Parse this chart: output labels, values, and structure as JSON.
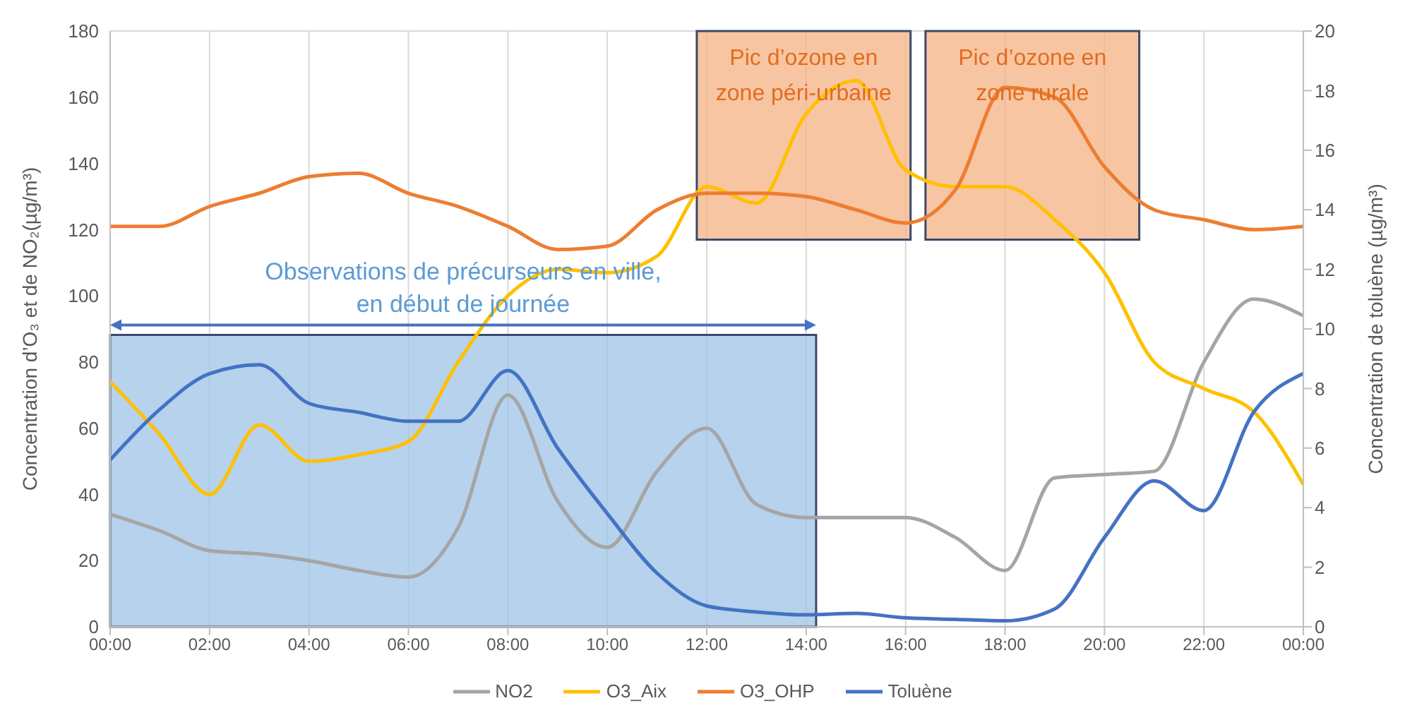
{
  "chart_data": {
    "type": "line",
    "ylabel": "Concentration d’O₃ et de NO₂(µg/m³)",
    "y2label": "Concentration de toluène (µg/m³)",
    "x": [
      0,
      1,
      2,
      3,
      4,
      5,
      6,
      7,
      8,
      9,
      10,
      11,
      12,
      13,
      14,
      15,
      16,
      17,
      18,
      19,
      20,
      21,
      22,
      23,
      24
    ],
    "series": [
      {
        "name": "NO2",
        "color": "#a5a5a5",
        "values": [
          34,
          29,
          23,
          22,
          20,
          17,
          15,
          30,
          70,
          38,
          24,
          47,
          60,
          37,
          33,
          33,
          33,
          27,
          17,
          45,
          46,
          47,
          80,
          99,
          94
        ]
      },
      {
        "name": "O3_Aix",
        "color": "#ffc000",
        "values": [
          74,
          58,
          40,
          61,
          50,
          52,
          56,
          80,
          100,
          108,
          107,
          112,
          133,
          128,
          155,
          165,
          138,
          133,
          133,
          123,
          107,
          80,
          72,
          65,
          43
        ]
      },
      {
        "name": "O3_OHP",
        "color": "#ed7d31",
        "values": [
          121,
          121,
          127,
          131,
          136,
          137,
          131,
          127,
          121,
          114,
          115,
          126,
          131,
          131,
          130,
          126,
          122,
          132,
          163,
          160,
          139,
          126,
          123,
          120,
          121
        ]
      },
      {
        "name": "Toluène",
        "color": "#4472c4",
        "axis": "y2",
        "values": [
          5.6,
          7.3,
          8.5,
          8.8,
          7.5,
          7.2,
          6.9,
          6.9,
          8.6,
          6.0,
          3.8,
          1.8,
          0.7,
          0.5,
          0.4,
          0.45,
          0.3,
          0.25,
          0.2,
          0.6,
          3.0,
          4.9,
          3.9,
          7.2,
          8.5
        ]
      }
    ],
    "xlim": [
      0,
      24
    ],
    "xticks": [
      {
        "value": 0,
        "label": "00:00"
      },
      {
        "value": 2,
        "label": "02:00"
      },
      {
        "value": 4,
        "label": "04:00"
      },
      {
        "value": 6,
        "label": "06:00"
      },
      {
        "value": 8,
        "label": "08:00"
      },
      {
        "value": 10,
        "label": "10:00"
      },
      {
        "value": 12,
        "label": "12:00"
      },
      {
        "value": 14,
        "label": "14:00"
      },
      {
        "value": 16,
        "label": "16:00"
      },
      {
        "value": 18,
        "label": "18:00"
      },
      {
        "value": 20,
        "label": "20:00"
      },
      {
        "value": 22,
        "label": "22:00"
      },
      {
        "value": 24,
        "label": "00:00"
      }
    ],
    "ylim": [
      0,
      180
    ],
    "yticks": [
      0,
      20,
      40,
      60,
      80,
      100,
      120,
      140,
      160,
      180
    ],
    "y2lim": [
      0,
      20
    ],
    "y2ticks": [
      0,
      2,
      4,
      6,
      8,
      10,
      12,
      14,
      16,
      18,
      20
    ],
    "bands": [
      {
        "axis": "x",
        "from": 0,
        "to": 14.2,
        "label": "Observations de précurseurs en ville, en début de journée",
        "color": "#9dc3e6"
      },
      {
        "axis": "x",
        "from": 11.8,
        "to": 16.1,
        "label": "Pic d’ozone en zone péri-urbaine",
        "color": "#f4b183"
      },
      {
        "axis": "x",
        "from": 16.4,
        "to": 20.7,
        "label": "Pic d’ozone en zone rurale",
        "color": "#f4b183"
      }
    ],
    "grid": true,
    "marker": "none",
    "legend": "bottom"
  }
}
